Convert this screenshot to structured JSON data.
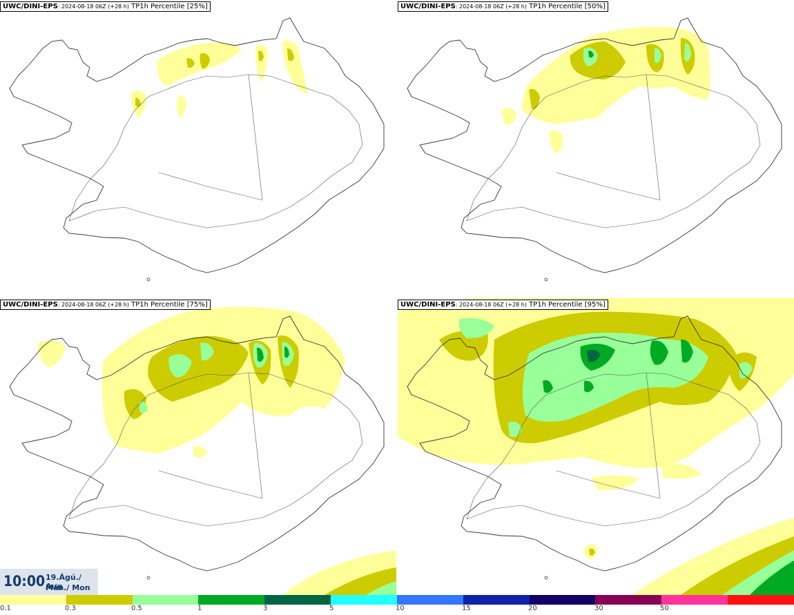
{
  "panels": [
    {
      "model": "UWC/DINI-EPS",
      "run": ": 2024-08-18 06Z (+28 h)",
      "product": " TP1h Percentile [25%]"
    },
    {
      "model": "UWC/DINI-EPS",
      "run": ": 2024-08-18 06Z (+28 h)",
      "product": " TP1h Percentile [50%]"
    },
    {
      "model": "UWC/DINI-EPS",
      "run": ": 2024-08-18 06Z (+28 h)",
      "product": " TP1h Percentile [75%]"
    },
    {
      "model": "UWC/DINI-EPS",
      "run": ": 2024-08-18 06Z (+28 h)",
      "product": " TP1h Percentile [95%]"
    }
  ],
  "valid_time": {
    "clock": "10:00",
    "date_line1": "19.Ágú./ Aug",
    "date_line2": "Mán./ Mon"
  },
  "legend": {
    "colors": [
      "#ffff99",
      "#cccc00",
      "#99ff99",
      "#00aa22",
      "#006644",
      "#22ffff",
      "#3377ff",
      "#1122aa",
      "#110066",
      "#880055",
      "#ff3399",
      "#ff1111"
    ],
    "labels": [
      "0.1",
      "0.3",
      "0.5",
      "1",
      "3",
      "5",
      "10",
      "15",
      "20",
      "30",
      "50"
    ]
  },
  "palette": {
    "coast": "#333333",
    "road": "#555555"
  }
}
